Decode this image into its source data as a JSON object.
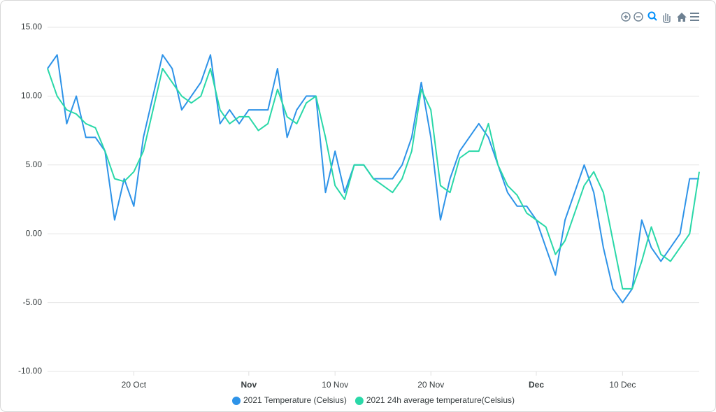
{
  "chart_data": {
    "type": "line",
    "x": [
      "11 Oct",
      "12 Oct",
      "13 Oct",
      "14 Oct",
      "15 Oct",
      "16 Oct",
      "17 Oct",
      "18 Oct",
      "19 Oct",
      "20 Oct",
      "21 Oct",
      "22 Oct",
      "23 Oct",
      "24 Oct",
      "25 Oct",
      "26 Oct",
      "27 Oct",
      "28 Oct",
      "29 Oct",
      "30 Oct",
      "31 Oct",
      "1 Nov",
      "2 Nov",
      "3 Nov",
      "4 Nov",
      "5 Nov",
      "6 Nov",
      "7 Nov",
      "8 Nov",
      "9 Nov",
      "10 Nov",
      "11 Nov",
      "12 Nov",
      "13 Nov",
      "14 Nov",
      "15 Nov",
      "16 Nov",
      "17 Nov",
      "18 Nov",
      "19 Nov",
      "20 Nov",
      "21 Nov",
      "22 Nov",
      "23 Nov",
      "24 Nov",
      "25 Nov",
      "26 Nov",
      "27 Nov",
      "28 Nov",
      "29 Nov",
      "30 Nov",
      "1 Dec",
      "2 Dec",
      "3 Dec",
      "4 Dec",
      "5 Dec",
      "6 Dec",
      "7 Dec",
      "8 Dec",
      "9 Dec",
      "10 Dec",
      "11 Dec",
      "12 Dec",
      "13 Dec",
      "14 Dec",
      "15 Dec",
      "16 Dec",
      "17 Dec",
      "18 Dec"
    ],
    "series": [
      {
        "name": "2021 Temperature (Celsius)",
        "color": "#2e93e8",
        "values": [
          12,
          13,
          8,
          10,
          7,
          7,
          6,
          1,
          4,
          2,
          7,
          10,
          13,
          12,
          9,
          10,
          11,
          13,
          8,
          9,
          8,
          9,
          9,
          9,
          12,
          7,
          9,
          10,
          10,
          3,
          6,
          3,
          5,
          5,
          4,
          4,
          4,
          5,
          7,
          11,
          7,
          1,
          4,
          6,
          7,
          8,
          7,
          5,
          3,
          2,
          2,
          1,
          -1,
          -3,
          1,
          3,
          5,
          3,
          -1,
          -4,
          -5,
          -4,
          1,
          -1,
          -2,
          -1,
          0,
          4,
          4
        ]
      },
      {
        "name": "2021 24h average temperature(Celsius)",
        "color": "#2ad8a8",
        "values": [
          12,
          10,
          9,
          8.7,
          8,
          7.7,
          6,
          4,
          3.8,
          4.5,
          6,
          9,
          12,
          11,
          10,
          9.5,
          10,
          12,
          9,
          8,
          8.5,
          8.5,
          7.5,
          8,
          10.5,
          8.5,
          8,
          9.5,
          10,
          7,
          3.5,
          2.5,
          5,
          5,
          4,
          3.5,
          3,
          4,
          6,
          10.5,
          9,
          3.5,
          3,
          5.5,
          6,
          6,
          8,
          5,
          3.5,
          2.8,
          1.5,
          1,
          0.5,
          -1.5,
          -0.5,
          1.5,
          3.5,
          4.5,
          3,
          -0.5,
          -4,
          -4,
          -2,
          0.5,
          -1.5,
          -2,
          -1,
          0,
          4.5
        ]
      }
    ],
    "xlim": [
      "11 Oct",
      "18 Dec"
    ],
    "xticks": [
      "20 Oct",
      {
        "value": "1 Nov",
        "label": "Nov"
      },
      "10 Nov",
      "20 Nov",
      {
        "value": "1 Dec",
        "label": "Dec"
      },
      "10 Dec"
    ],
    "ylim": [
      -10,
      15
    ],
    "yticks": [
      {
        "value": -10,
        "label": "-10.00"
      },
      {
        "value": -5,
        "label": "-5.00"
      },
      {
        "value": 0,
        "label": "0.00"
      },
      {
        "value": 5,
        "label": "5.00"
      },
      {
        "value": 10,
        "label": "10.00"
      },
      {
        "value": 15,
        "label": "15.00"
      }
    ],
    "grid": true,
    "legend": "bottom"
  }
}
